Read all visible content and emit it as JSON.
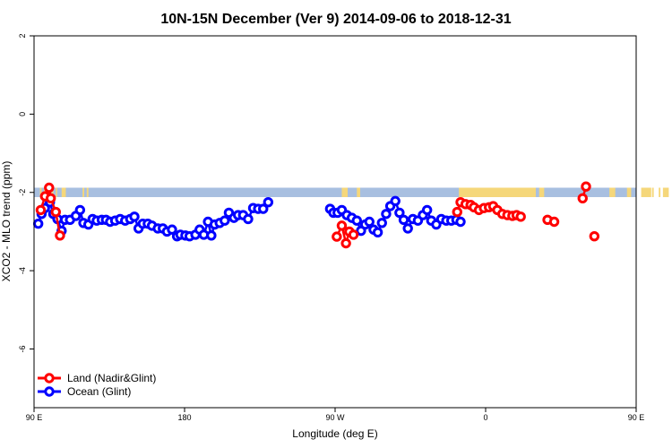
{
  "chart_data": {
    "type": "scatter",
    "title": "10N-15N December (Ver 9)   2014-09-06 to 2018-12-31",
    "xlabel": "Longitude (deg E)",
    "ylabel": "XCO2 - MLO trend (ppm)",
    "xlim": [
      90,
      450
    ],
    "ylim": [
      -7.5,
      2.0
    ],
    "x_ticks": [
      {
        "value": 90,
        "label": "90 E"
      },
      {
        "value": 180,
        "label": "180"
      },
      {
        "value": 270,
        "label": "90 W"
      },
      {
        "value": 360,
        "label": "0"
      },
      {
        "value": 450,
        "label": "90 E"
      },
      {
        "value": 540,
        "label": "180"
      }
    ],
    "y_ticks": [
      {
        "value": 2,
        "label": "2"
      },
      {
        "value": 0,
        "label": "0"
      },
      {
        "value": -2,
        "label": "-2"
      },
      {
        "value": -4,
        "label": "-4"
      },
      {
        "value": -6,
        "label": "-6"
      }
    ],
    "grid": false,
    "legend_position": "bottom-left",
    "colors": {
      "land": "#ff0000",
      "ocean": "#0000ff",
      "band_ocean": "#a8bfe0",
      "band_land": "#f5d77a"
    },
    "map_band": {
      "y_top": -1.88,
      "y_bottom": -2.12,
      "land_spans": [
        [
          93.5,
          94.5
        ],
        [
          96.0,
          100.5
        ],
        [
          100.8,
          101.5
        ],
        [
          103.0,
          103.8
        ],
        [
          106.5,
          109.0
        ],
        [
          119.0,
          120.0
        ],
        [
          121.5,
          122.5
        ],
        [
          274.0,
          277.5
        ],
        [
          283.0,
          285.0
        ],
        [
          344.0,
          390.0
        ],
        [
          392.0,
          395.0
        ],
        [
          434.0,
          437.5
        ],
        [
          444.5,
          447.0
        ],
        [
          453.0,
          459.0
        ],
        [
          459.5,
          460.5
        ],
        [
          463.5,
          464.5
        ],
        [
          466.0,
          469.5
        ]
      ]
    },
    "series": [
      {
        "name": "Land (Nadir&Glint)",
        "color": "#ff0000",
        "points": [
          [
            94,
            -2.45
          ],
          [
            96.6,
            -2.1
          ],
          [
            99.0,
            -1.88
          ],
          [
            100,
            -2.15
          ],
          [
            103,
            -2.5
          ],
          [
            105.5,
            -3.1
          ],
          [
            271,
            -3.13
          ],
          [
            274,
            -2.85
          ],
          [
            276.5,
            -3.3
          ],
          [
            278.5,
            -3.0
          ],
          [
            281,
            -3.08
          ],
          [
            343,
            -2.5
          ],
          [
            345,
            -2.25
          ],
          [
            348,
            -2.3
          ],
          [
            351,
            -2.32
          ],
          [
            353,
            -2.38
          ],
          [
            356,
            -2.45
          ],
          [
            359,
            -2.4
          ],
          [
            362,
            -2.38
          ],
          [
            364.5,
            -2.35
          ],
          [
            367,
            -2.45
          ],
          [
            370,
            -2.55
          ],
          [
            373,
            -2.58
          ],
          [
            376,
            -2.6
          ],
          [
            378.5,
            -2.58
          ],
          [
            381,
            -2.62
          ],
          [
            397,
            -2.7
          ],
          [
            401,
            -2.75
          ],
          [
            418,
            -2.15
          ],
          [
            420,
            -1.85
          ],
          [
            425,
            -3.12
          ]
        ]
      },
      {
        "name": "Ocean (Glint)",
        "color": "#0000ff",
        "points": [
          [
            92.5,
            -2.8
          ],
          [
            94.5,
            -2.55
          ],
          [
            96.5,
            -2.4
          ],
          [
            99.5,
            -2.25
          ],
          [
            101.5,
            -2.55
          ],
          [
            104,
            -2.68
          ],
          [
            106.5,
            -2.98
          ],
          [
            108.5,
            -2.7
          ],
          [
            111.5,
            -2.7
          ],
          [
            115,
            -2.6
          ],
          [
            117.5,
            -2.45
          ],
          [
            119.5,
            -2.78
          ],
          [
            122.5,
            -2.82
          ],
          [
            125,
            -2.68
          ],
          [
            127.5,
            -2.72
          ],
          [
            130.5,
            -2.7
          ],
          [
            133,
            -2.7
          ],
          [
            135.5,
            -2.75
          ],
          [
            138.5,
            -2.72
          ],
          [
            141.5,
            -2.68
          ],
          [
            144.5,
            -2.72
          ],
          [
            147.5,
            -2.68
          ],
          [
            150,
            -2.62
          ],
          [
            152.5,
            -2.92
          ],
          [
            155,
            -2.8
          ],
          [
            158,
            -2.8
          ],
          [
            160.5,
            -2.85
          ],
          [
            164,
            -2.92
          ],
          [
            167,
            -2.92
          ],
          [
            169.5,
            -3.0
          ],
          [
            172.5,
            -2.95
          ],
          [
            175.5,
            -3.12
          ],
          [
            177.5,
            -3.08
          ],
          [
            180.5,
            -3.1
          ],
          [
            183,
            -3.12
          ],
          [
            186.5,
            -3.08
          ],
          [
            189,
            -2.95
          ],
          [
            191.5,
            -3.08
          ],
          [
            194,
            -2.75
          ],
          [
            196,
            -3.1
          ],
          [
            198,
            -2.82
          ],
          [
            201,
            -2.78
          ],
          [
            204,
            -2.72
          ],
          [
            206.5,
            -2.52
          ],
          [
            209.5,
            -2.65
          ],
          [
            212,
            -2.58
          ],
          [
            215,
            -2.58
          ],
          [
            218,
            -2.68
          ],
          [
            221,
            -2.4
          ],
          [
            224,
            -2.42
          ],
          [
            227,
            -2.42
          ],
          [
            230,
            -2.25
          ],
          [
            267,
            -2.42
          ],
          [
            269,
            -2.52
          ],
          [
            271.5,
            -2.52
          ],
          [
            274,
            -2.45
          ],
          [
            277,
            -2.58
          ],
          [
            280,
            -2.65
          ],
          [
            283,
            -2.72
          ],
          [
            285.5,
            -2.98
          ],
          [
            288,
            -2.82
          ],
          [
            290.5,
            -2.75
          ],
          [
            293,
            -2.95
          ],
          [
            295.5,
            -3.02
          ],
          [
            298,
            -2.78
          ],
          [
            300.5,
            -2.55
          ],
          [
            303,
            -2.35
          ],
          [
            306,
            -2.22
          ],
          [
            308.5,
            -2.52
          ],
          [
            311,
            -2.7
          ],
          [
            313.5,
            -2.92
          ],
          [
            316.5,
            -2.68
          ],
          [
            319.5,
            -2.72
          ],
          [
            322.5,
            -2.58
          ],
          [
            325,
            -2.45
          ],
          [
            327.5,
            -2.72
          ],
          [
            330.5,
            -2.82
          ],
          [
            333.5,
            -2.68
          ],
          [
            336.5,
            -2.72
          ],
          [
            339.5,
            -2.72
          ],
          [
            342.5,
            -2.7
          ],
          [
            345,
            -2.75
          ]
        ]
      }
    ]
  }
}
